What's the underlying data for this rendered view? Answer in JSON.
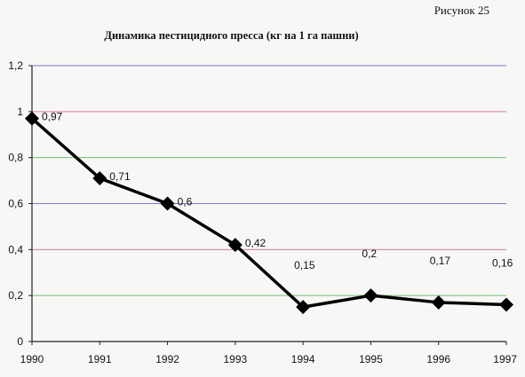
{
  "figure_caption": "Рисунок 25",
  "chart_data": {
    "type": "line",
    "title": "Динамика пестицидного пресса (кг на 1 га пашни)",
    "x": [
      "1990",
      "1991",
      "1992",
      "1993",
      "1994",
      "1995",
      "1996",
      "1997"
    ],
    "values": [
      0.97,
      0.71,
      0.6,
      0.42,
      0.15,
      0.2,
      0.17,
      0.16
    ],
    "data_labels": [
      "0,97",
      "0,71",
      "0,6",
      "0,42",
      "0,15",
      "0,2",
      "0,17",
      "0,16"
    ],
    "y_ticks": [
      "0",
      "0,2",
      "0,4",
      "0,6",
      "0,8",
      "1",
      "1,2"
    ],
    "ylim": [
      0,
      1.2
    ],
    "grid": true,
    "legend": "none",
    "colors": {
      "line": "#000000",
      "grid": [
        "#7a7ad6",
        "#6fbf6f",
        "#d47a9a"
      ]
    }
  }
}
